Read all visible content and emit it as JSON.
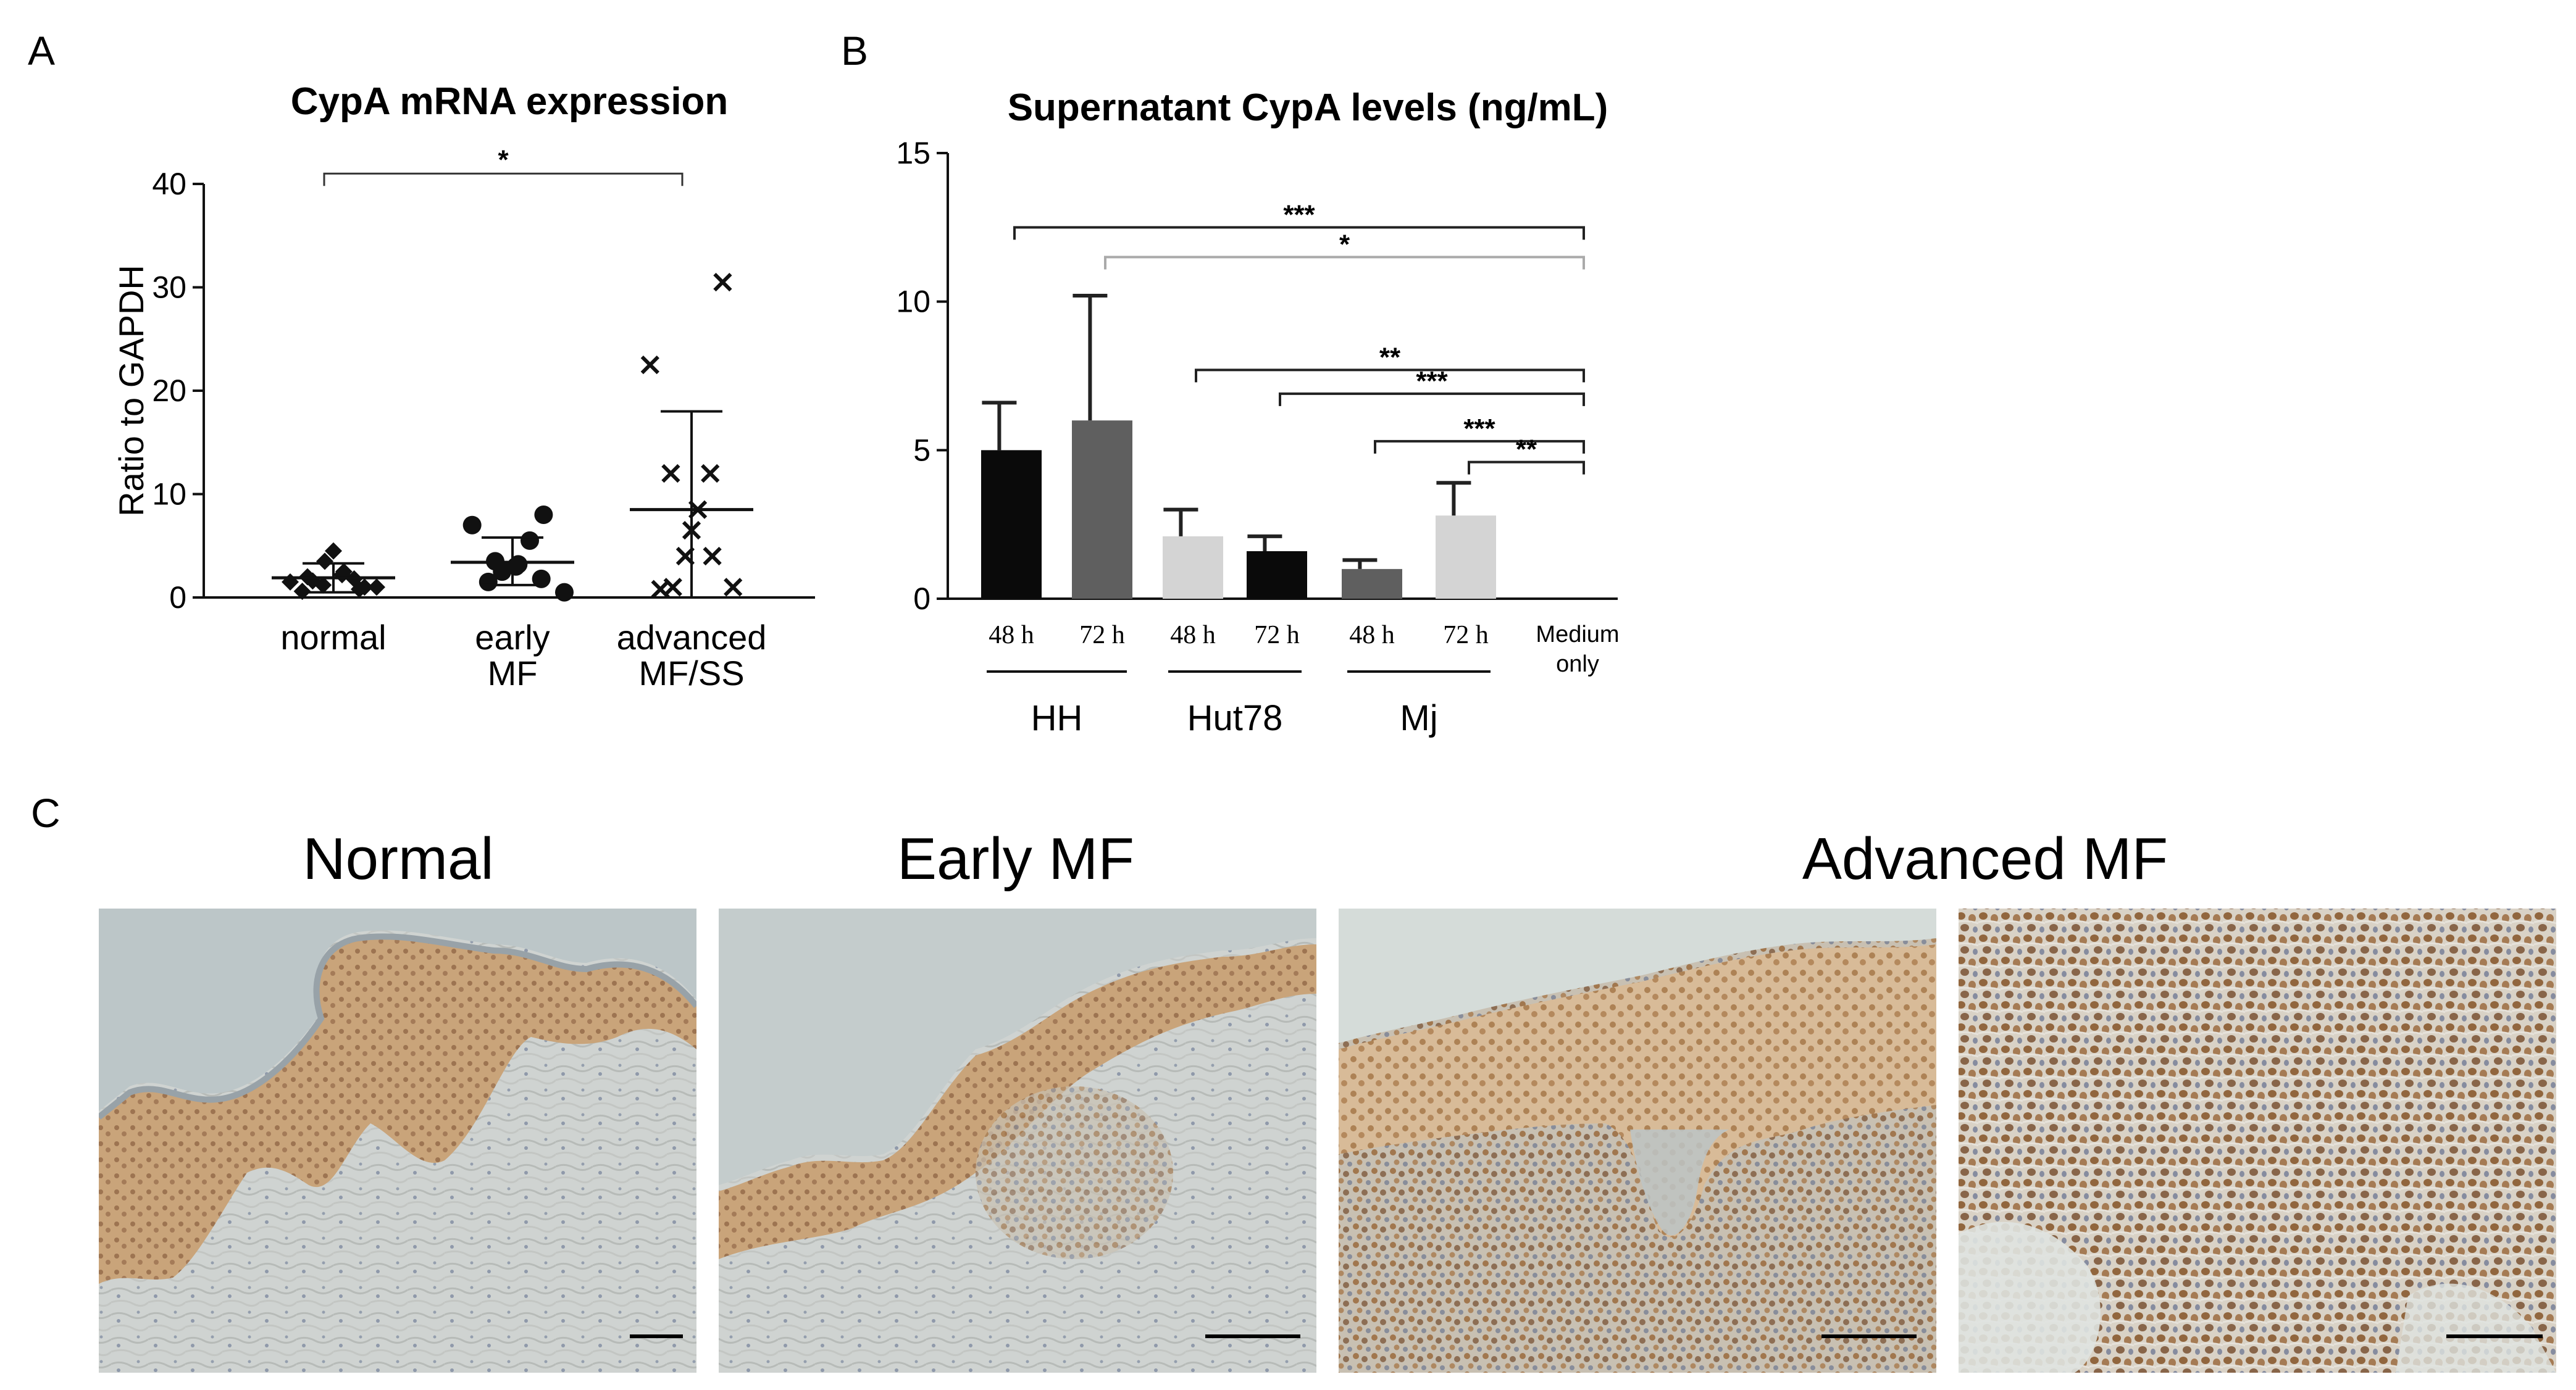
{
  "panels": {
    "a": "A",
    "b": "B",
    "c": "C"
  },
  "chart_data": [
    {
      "type": "scatter",
      "title": "CypA mRNA expression",
      "ylabel": "Ratio to GAPDH",
      "ylim": [
        0,
        40
      ],
      "yticks": [
        "0",
        "10",
        "20",
        "30",
        "40"
      ],
      "categories": [
        "normal",
        "early|MF",
        "advanced|MF/SS"
      ],
      "series": [
        {
          "category": 0,
          "marker": "diamond",
          "values": [
            1.0,
            1.5,
            1.8,
            2.0,
            2.5,
            3.5,
            4.5,
            2.2,
            1.2,
            0.8,
            1.6,
            1.0,
            0.6
          ],
          "mean": 1.9,
          "sd_low": 0.5,
          "sd_high": 3.3
        },
        {
          "category": 1,
          "marker": "circle",
          "values": [
            8.0,
            7.0,
            5.5,
            3.5,
            3.0,
            3.2,
            2.5,
            1.8,
            1.5,
            0.5
          ],
          "mean": 3.4,
          "sd_low": 1.2,
          "sd_high": 5.8
        },
        {
          "category": 2,
          "marker": "x",
          "values": [
            30.5,
            22.5,
            12.0,
            12.0,
            8.5,
            6.5,
            4.0,
            4.0,
            1.0,
            1.0,
            0.8
          ],
          "mean": 8.5,
          "sd_low": 0.0,
          "sd_high": 18.0
        }
      ],
      "significance": [
        {
          "from": 0,
          "to": 2,
          "label": "*",
          "y": 41
        }
      ]
    },
    {
      "type": "bar",
      "title": "Supernatant CypA levels (ng/mL)",
      "ylim": [
        0,
        15
      ],
      "yticks": [
        "0",
        "5",
        "10",
        "15"
      ],
      "categories": [
        "48 h",
        "72 h",
        "48 h",
        "72 h",
        "48 h",
        "72 h",
        "Medium|only"
      ],
      "values": [
        5.0,
        6.0,
        2.1,
        1.6,
        1.0,
        2.8,
        0.0
      ],
      "errors": [
        1.6,
        4.2,
        0.9,
        0.5,
        0.3,
        1.1,
        0.0
      ],
      "colors": [
        "#0a0a0a",
        "#5f5f5f",
        "#d4d4d4",
        "#0a0a0a",
        "#5f5f5f",
        "#d4d4d4",
        "#ffffff"
      ],
      "groups": [
        {
          "label": "HH",
          "from": 0,
          "to": 1
        },
        {
          "label": "Hut78",
          "from": 2,
          "to": 3
        },
        {
          "label": "Mj",
          "from": 4,
          "to": 5
        }
      ],
      "significance": [
        {
          "from": 0,
          "to": 6,
          "label": "***",
          "y": 12.5,
          "color": "#222222"
        },
        {
          "from": 1,
          "to": 6,
          "label": "*",
          "y": 11.5,
          "color": "#aaaaaa"
        },
        {
          "from": 2,
          "to": 6,
          "label": "**",
          "y": 7.7,
          "color": "#222222"
        },
        {
          "from": 3,
          "to": 6,
          "label": "***",
          "y": 6.9,
          "color": "#222222"
        },
        {
          "from": 4,
          "to": 6,
          "label": "***",
          "y": 5.3,
          "color": "#222222"
        },
        {
          "from": 5,
          "to": 6,
          "label": "**",
          "y": 4.6,
          "color": "#222222"
        }
      ]
    }
  ],
  "histology": {
    "titles": {
      "normal": "Normal",
      "early": "Early MF",
      "advanced": "Advanced MF"
    }
  }
}
